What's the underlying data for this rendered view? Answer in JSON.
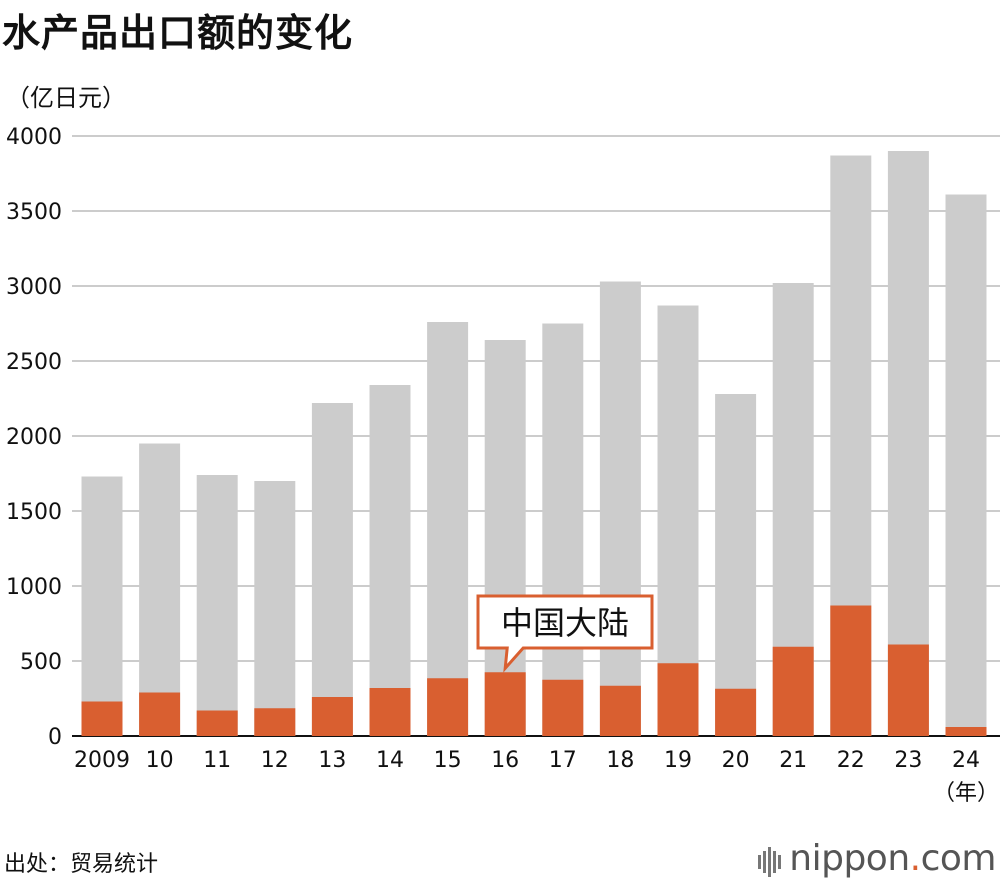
{
  "title": "水产品出口额的变化",
  "unit_label": "（亿日元）",
  "source": "出处：贸易统计",
  "logo": {
    "name": "nippon",
    "dot": ".",
    "tld": "com"
  },
  "colors": {
    "total": "#cccccc",
    "china": "#d95f30",
    "grid": "#cccccc"
  },
  "chart_data": {
    "type": "bar",
    "categories": [
      "2009",
      "10",
      "11",
      "12",
      "13",
      "14",
      "15",
      "16",
      "17",
      "18",
      "19",
      "20",
      "21",
      "22",
      "23",
      "24"
    ],
    "x_unit_label": "（年）",
    "series": [
      {
        "values": [
          1730,
          1950,
          1740,
          1700,
          2220,
          2340,
          2760,
          2640,
          2750,
          3030,
          2870,
          2280,
          3020,
          3870,
          3900,
          3610
        ]
      },
      {
        "name": "中国大陆",
        "values": [
          230,
          290,
          170,
          185,
          260,
          320,
          385,
          425,
          375,
          335,
          485,
          315,
          595,
          870,
          610,
          60
        ]
      }
    ],
    "stacked": "overlay",
    "ylim": [
      0,
      4000
    ],
    "yticks": [
      0,
      500,
      1000,
      1500,
      2000,
      2500,
      3000,
      3500,
      4000
    ],
    "grid": true,
    "annotation": {
      "text": "中国大陆",
      "category": "16"
    }
  }
}
